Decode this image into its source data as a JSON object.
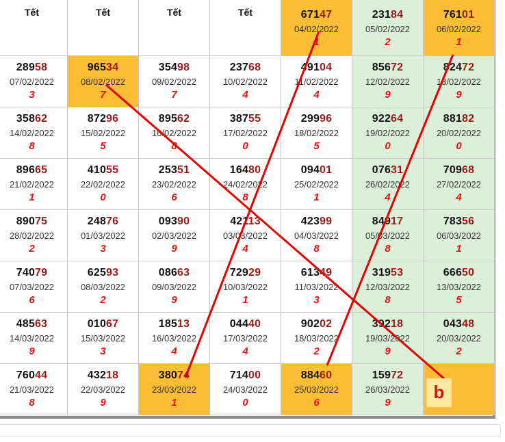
{
  "tet_label": "Tết",
  "rows": [
    [
      {
        "tet": true
      },
      {
        "tet": true
      },
      {
        "tet": true
      },
      {
        "tet": true
      },
      {
        "pre": "671",
        "last2": "47",
        "date": "04/02/2022",
        "digit": "1",
        "hl": "orange"
      },
      {
        "pre": "231",
        "last2": "84",
        "date": "05/02/2022",
        "digit": "2",
        "hl": "green"
      },
      {
        "pre": "761",
        "last2": "01",
        "date": "06/02/2022",
        "digit": "1",
        "hl": "orange"
      }
    ],
    [
      {
        "pre": "289",
        "last2": "58",
        "date": "07/02/2022",
        "digit": "3"
      },
      {
        "pre": "965",
        "last2": "34",
        "date": "08/02/2022",
        "digit": "7",
        "hl": "orange"
      },
      {
        "pre": "354",
        "last2": "98",
        "date": "09/02/2022",
        "digit": "7"
      },
      {
        "pre": "237",
        "last2": "68",
        "date": "10/02/2022",
        "digit": "4"
      },
      {
        "pre": "491",
        "last2": "04",
        "date": "11/02/2022",
        "digit": "4"
      },
      {
        "pre": "856",
        "last2": "72",
        "date": "12/02/2022",
        "digit": "9",
        "hl": "green"
      },
      {
        "pre": "824",
        "last2": "72",
        "date": "13/02/2022",
        "digit": "9",
        "hl": "green"
      }
    ],
    [
      {
        "pre": "358",
        "last2": "62",
        "date": "14/02/2022",
        "digit": "8"
      },
      {
        "pre": "872",
        "last2": "96",
        "date": "15/02/2022",
        "digit": "5"
      },
      {
        "pre": "895",
        "last2": "62",
        "date": "16/02/2022",
        "digit": "8"
      },
      {
        "pre": "387",
        "last2": "55",
        "date": "17/02/2022",
        "digit": "0"
      },
      {
        "pre": "299",
        "last2": "96",
        "date": "18/02/2022",
        "digit": "5"
      },
      {
        "pre": "922",
        "last2": "64",
        "date": "19/02/2022",
        "digit": "0",
        "hl": "green"
      },
      {
        "pre": "881",
        "last2": "82",
        "date": "20/02/2022",
        "digit": "0",
        "hl": "green"
      }
    ],
    [
      {
        "pre": "896",
        "last2": "65",
        "date": "21/02/2022",
        "digit": "1"
      },
      {
        "pre": "410",
        "last2": "55",
        "date": "22/02/2022",
        "digit": "0"
      },
      {
        "pre": "253",
        "last2": "51",
        "date": "23/02/2022",
        "digit": "6"
      },
      {
        "pre": "164",
        "last2": "80",
        "date": "24/02/2022",
        "digit": "8"
      },
      {
        "pre": "094",
        "last2": "01",
        "date": "25/02/2022",
        "digit": "1"
      },
      {
        "pre": "076",
        "last2": "31",
        "date": "26/02/2022",
        "digit": "4",
        "hl": "green"
      },
      {
        "pre": "709",
        "last2": "68",
        "date": "27/02/2022",
        "digit": "4",
        "hl": "green"
      }
    ],
    [
      {
        "pre": "890",
        "last2": "75",
        "date": "28/02/2022",
        "digit": "2"
      },
      {
        "pre": "248",
        "last2": "76",
        "date": "01/03/2022",
        "digit": "3"
      },
      {
        "pre": "093",
        "last2": "90",
        "date": "02/03/2022",
        "digit": "9"
      },
      {
        "pre": "421",
        "last2": "13",
        "date": "03/03/2022",
        "digit": "4"
      },
      {
        "pre": "423",
        "last2": "99",
        "date": "04/03/2022",
        "digit": "8"
      },
      {
        "pre": "849",
        "last2": "17",
        "date": "05/03/2022",
        "digit": "8",
        "hl": "green"
      },
      {
        "pre": "783",
        "last2": "56",
        "date": "06/03/2022",
        "digit": "1",
        "hl": "green"
      }
    ],
    [
      {
        "pre": "740",
        "last2": "79",
        "date": "07/03/2022",
        "digit": "6"
      },
      {
        "pre": "625",
        "last2": "93",
        "date": "08/03/2022",
        "digit": "2"
      },
      {
        "pre": "086",
        "last2": "63",
        "date": "09/03/2022",
        "digit": "9"
      },
      {
        "pre": "729",
        "last2": "29",
        "date": "10/03/2022",
        "digit": "1"
      },
      {
        "pre": "613",
        "last2": "49",
        "date": "11/03/2022",
        "digit": "3"
      },
      {
        "pre": "319",
        "last2": "53",
        "date": "12/03/2022",
        "digit": "8",
        "hl": "green"
      },
      {
        "pre": "666",
        "last2": "50",
        "date": "13/03/2022",
        "digit": "5",
        "hl": "green"
      }
    ],
    [
      {
        "pre": "485",
        "last2": "63",
        "date": "14/03/2022",
        "digit": "9"
      },
      {
        "pre": "010",
        "last2": "67",
        "date": "15/03/2022",
        "digit": "3"
      },
      {
        "pre": "185",
        "last2": "13",
        "date": "16/03/2022",
        "digit": "4"
      },
      {
        "pre": "044",
        "last2": "40",
        "date": "17/03/2022",
        "digit": "4"
      },
      {
        "pre": "902",
        "last2": "02",
        "date": "18/03/2022",
        "digit": "2"
      },
      {
        "pre": "392",
        "last2": "18",
        "date": "19/03/2022",
        "digit": "9",
        "hl": "green"
      },
      {
        "pre": "043",
        "last2": "48",
        "date": "20/03/2022",
        "digit": "2",
        "hl": "green"
      }
    ],
    [
      {
        "pre": "760",
        "last2": "44",
        "date": "21/03/2022",
        "digit": "8"
      },
      {
        "pre": "432",
        "last2": "18",
        "date": "22/03/2022",
        "digit": "9"
      },
      {
        "pre": "380",
        "last2": "74",
        "date": "23/03/2022",
        "digit": "1",
        "hl": "orange"
      },
      {
        "pre": "714",
        "last2": "00",
        "date": "24/03/2022",
        "digit": "0"
      },
      {
        "pre": "884",
        "last2": "60",
        "date": "25/03/2022",
        "digit": "6",
        "hl": "orange"
      },
      {
        "pre": "159",
        "last2": "72",
        "date": "26/03/2022",
        "digit": "9",
        "hl": "green"
      },
      {
        "empty": true,
        "hl": "orange"
      }
    ]
  ],
  "annotation": {
    "label": "b",
    "line_color": "#e60000",
    "label_color": "#d11414"
  },
  "colors": {
    "orange": "#fbbd35",
    "green": "#dcefd8",
    "red_digit": "#e01212",
    "dark_red_number": "#9b1b1b"
  }
}
